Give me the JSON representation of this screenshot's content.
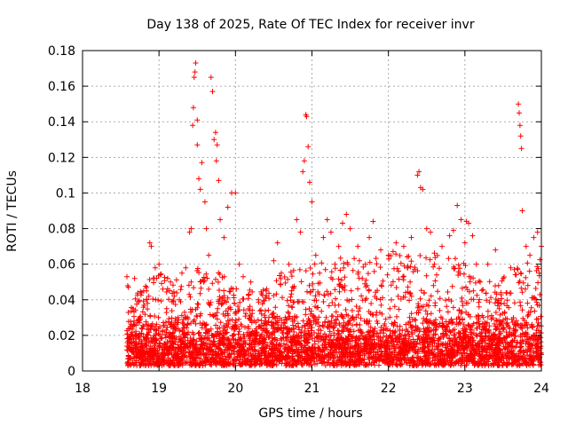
{
  "chart_data": {
    "type": "scatter",
    "title": "Day 138 of 2025, Rate Of TEC Index for receiver invr",
    "xlabel": "GPS time / hours",
    "ylabel": "ROTI / TECUs",
    "xlim": [
      18,
      24
    ],
    "ylim": [
      0,
      0.18
    ],
    "xticks": [
      "18",
      "19",
      "20",
      "21",
      "22",
      "23",
      "24"
    ],
    "yticks": [
      "0",
      "0.02",
      "0.04",
      "0.06",
      "0.08",
      "0.1",
      "0.12",
      "0.14",
      "0.16",
      "0.18"
    ],
    "grid": true,
    "marker": "+",
    "color": "#ff0000",
    "series": [
      {
        "name": "ROTI",
        "points": [
          [
            18.58,
            0.053
          ],
          [
            18.6,
            0.047
          ],
          [
            18.62,
            0.024
          ],
          [
            18.64,
            0.012
          ],
          [
            18.66,
            0.035
          ],
          [
            18.68,
            0.052
          ],
          [
            18.7,
            0.018
          ],
          [
            18.72,
            0.008
          ],
          [
            18.75,
            0.03
          ],
          [
            18.8,
            0.045
          ],
          [
            18.85,
            0.038
          ],
          [
            18.88,
            0.072
          ],
          [
            18.9,
            0.07
          ],
          [
            18.95,
            0.058
          ],
          [
            19.0,
            0.06
          ],
          [
            19.05,
            0.046
          ],
          [
            19.1,
            0.035
          ],
          [
            19.15,
            0.05
          ],
          [
            19.2,
            0.042
          ],
          [
            19.25,
            0.03
          ],
          [
            19.3,
            0.055
          ],
          [
            19.35,
            0.058
          ],
          [
            19.4,
            0.078
          ],
          [
            19.42,
            0.08
          ],
          [
            19.44,
            0.138
          ],
          [
            19.45,
            0.148
          ],
          [
            19.46,
            0.165
          ],
          [
            19.47,
            0.168
          ],
          [
            19.48,
            0.173
          ],
          [
            19.5,
            0.141
          ],
          [
            19.5,
            0.127
          ],
          [
            19.52,
            0.108
          ],
          [
            19.54,
            0.102
          ],
          [
            19.56,
            0.117
          ],
          [
            19.6,
            0.095
          ],
          [
            19.62,
            0.08
          ],
          [
            19.65,
            0.065
          ],
          [
            19.68,
            0.165
          ],
          [
            19.7,
            0.157
          ],
          [
            19.72,
            0.13
          ],
          [
            19.74,
            0.134
          ],
          [
            19.76,
            0.127
          ],
          [
            19.75,
            0.118
          ],
          [
            19.78,
            0.107
          ],
          [
            19.8,
            0.085
          ],
          [
            19.85,
            0.075
          ],
          [
            19.9,
            0.092
          ],
          [
            19.95,
            0.1
          ],
          [
            20.0,
            0.1
          ],
          [
            20.05,
            0.06
          ],
          [
            20.1,
            0.053
          ],
          [
            20.2,
            0.05
          ],
          [
            20.3,
            0.04
          ],
          [
            20.4,
            0.045
          ],
          [
            20.5,
            0.062
          ],
          [
            20.55,
            0.072
          ],
          [
            20.6,
            0.055
          ],
          [
            20.7,
            0.06
          ],
          [
            20.8,
            0.085
          ],
          [
            20.85,
            0.078
          ],
          [
            20.88,
            0.112
          ],
          [
            20.9,
            0.118
          ],
          [
            20.92,
            0.144
          ],
          [
            20.93,
            0.143
          ],
          [
            20.95,
            0.126
          ],
          [
            20.97,
            0.106
          ],
          [
            21.0,
            0.095
          ],
          [
            21.05,
            0.065
          ],
          [
            21.1,
            0.055
          ],
          [
            21.15,
            0.075
          ],
          [
            21.2,
            0.085
          ],
          [
            21.25,
            0.078
          ],
          [
            21.3,
            0.06
          ],
          [
            21.35,
            0.07
          ],
          [
            21.4,
            0.083
          ],
          [
            21.45,
            0.088
          ],
          [
            21.5,
            0.08
          ],
          [
            21.6,
            0.07
          ],
          [
            21.7,
            0.06
          ],
          [
            21.75,
            0.075
          ],
          [
            21.8,
            0.084
          ],
          [
            21.9,
            0.068
          ],
          [
            22.0,
            0.065
          ],
          [
            22.1,
            0.072
          ],
          [
            22.2,
            0.07
          ],
          [
            22.3,
            0.075
          ],
          [
            22.38,
            0.11
          ],
          [
            22.4,
            0.112
          ],
          [
            22.42,
            0.103
          ],
          [
            22.45,
            0.102
          ],
          [
            22.5,
            0.08
          ],
          [
            22.55,
            0.078
          ],
          [
            22.6,
            0.06
          ],
          [
            22.7,
            0.07
          ],
          [
            22.8,
            0.076
          ],
          [
            22.85,
            0.079
          ],
          [
            22.9,
            0.093
          ],
          [
            22.95,
            0.085
          ],
          [
            23.0,
            0.072
          ],
          [
            23.02,
            0.084
          ],
          [
            23.05,
            0.083
          ],
          [
            23.1,
            0.076
          ],
          [
            23.15,
            0.06
          ],
          [
            23.2,
            0.05
          ],
          [
            23.3,
            0.06
          ],
          [
            23.4,
            0.068
          ],
          [
            23.5,
            0.052
          ],
          [
            23.6,
            0.058
          ],
          [
            23.7,
            0.15
          ],
          [
            23.71,
            0.145
          ],
          [
            23.72,
            0.138
          ],
          [
            23.73,
            0.132
          ],
          [
            23.74,
            0.125
          ],
          [
            23.75,
            0.09
          ],
          [
            23.8,
            0.07
          ],
          [
            23.85,
            0.065
          ],
          [
            23.9,
            0.075
          ],
          [
            23.95,
            0.078
          ],
          [
            24.0,
            0.07
          ]
        ]
      }
    ],
    "dense_band": {
      "description": "dense cloud of '+' markers from 18.58 to 24 hours",
      "baseline_range": [
        0.003,
        0.035
      ],
      "upper_envelope": [
        [
          18.6,
          0.035
        ],
        [
          18.8,
          0.05
        ],
        [
          19.0,
          0.055
        ],
        [
          19.3,
          0.05
        ],
        [
          19.5,
          0.06
        ],
        [
          19.8,
          0.055
        ],
        [
          20.0,
          0.05
        ],
        [
          20.3,
          0.045
        ],
        [
          20.5,
          0.055
        ],
        [
          20.8,
          0.06
        ],
        [
          21.0,
          0.06
        ],
        [
          21.3,
          0.065
        ],
        [
          21.6,
          0.065
        ],
        [
          21.9,
          0.07
        ],
        [
          22.2,
          0.065
        ],
        [
          22.5,
          0.065
        ],
        [
          22.8,
          0.07
        ],
        [
          23.1,
          0.055
        ],
        [
          23.4,
          0.05
        ],
        [
          23.7,
          0.06
        ],
        [
          24.0,
          0.065
        ]
      ]
    }
  }
}
